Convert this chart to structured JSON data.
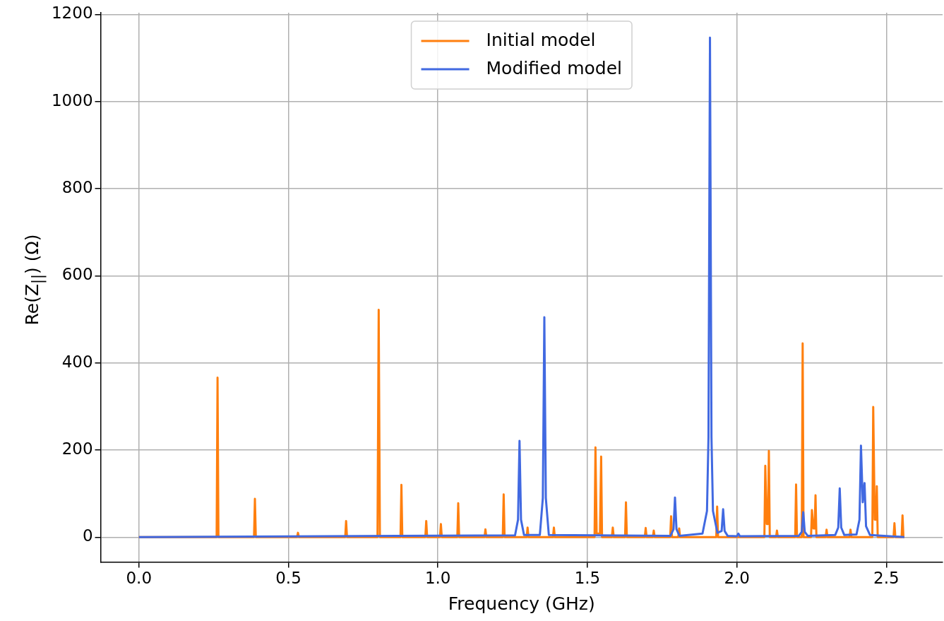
{
  "chart_data": {
    "type": "line",
    "xlabel": "Frequency (GHz)",
    "ylabel": "Re(Z$_{||}$) (Ω)",
    "xlim": [
      -0.128,
      2.688
    ],
    "ylim": [
      -57,
      1204
    ],
    "xticks": [
      {
        "value": 0,
        "label": "0.0"
      },
      {
        "value": 0.5,
        "label": "0.5"
      },
      {
        "value": 1,
        "label": "1.0"
      },
      {
        "value": 1.5,
        "label": "1.5"
      },
      {
        "value": 2,
        "label": "2.0"
      },
      {
        "value": 2.5,
        "label": "2.5"
      }
    ],
    "yticks": [
      0,
      200,
      400,
      600,
      800,
      1000,
      1200
    ],
    "grid": true,
    "legend": "top",
    "marker": "none",
    "line_style": "solid",
    "series": [
      {
        "name": "Initial model",
        "color": "#ff7f0e",
        "x": [
          0,
          0.26,
          0.263,
          0.266,
          0.385,
          0.388,
          0.391,
          0.529,
          0.532,
          0.535,
          0.69,
          0.693,
          0.696,
          0.798,
          0.802,
          0.806,
          0.875,
          0.878,
          0.881,
          0.958,
          0.961,
          0.964,
          1.007,
          1.01,
          1.013,
          1.065,
          1.068,
          1.071,
          1.156,
          1.159,
          1.162,
          1.217,
          1.22,
          1.223,
          1.297,
          1.3,
          1.303,
          1.385,
          1.388,
          1.391,
          1.524,
          1.527,
          1.531,
          1.542,
          1.546,
          1.549,
          1.582,
          1.585,
          1.588,
          1.626,
          1.629,
          1.632,
          1.692,
          1.695,
          1.698,
          1.719,
          1.722,
          1.725,
          1.777,
          1.78,
          1.783,
          1.804,
          1.807,
          1.81,
          1.931,
          1.934,
          1.937,
          2.092,
          2.095,
          2.1,
          2.104,
          2.107,
          2.11,
          2.131,
          2.134,
          2.137,
          2.195,
          2.198,
          2.201,
          2.217,
          2.22,
          2.223,
          2.248,
          2.251,
          2.256,
          2.26,
          2.263,
          2.266,
          2.297,
          2.3,
          2.303,
          2.377,
          2.38,
          2.383,
          2.453,
          2.456,
          2.461,
          2.465,
          2.468,
          2.471,
          2.524,
          2.527,
          2.53,
          2.551,
          2.554,
          2.557,
          2.56
        ],
        "values": [
          0,
          0,
          366,
          0,
          0,
          88,
          0,
          0,
          10,
          0,
          0,
          37,
          0,
          0,
          522,
          0,
          0,
          120,
          0,
          0,
          37,
          0,
          0,
          30,
          0,
          0,
          78,
          0,
          0,
          18,
          0,
          0,
          98,
          0,
          0,
          22,
          0,
          0,
          22,
          0,
          0,
          206,
          8,
          8,
          185,
          0,
          0,
          22,
          0,
          0,
          80,
          0,
          0,
          21,
          0,
          0,
          15,
          0,
          0,
          48,
          0,
          0,
          20,
          0,
          0,
          70,
          0,
          0,
          164,
          30,
          30,
          198,
          0,
          0,
          15,
          0,
          0,
          121,
          0,
          0,
          445,
          0,
          0,
          62,
          20,
          20,
          96,
          0,
          0,
          17,
          0,
          0,
          17,
          0,
          0,
          299,
          40,
          40,
          117,
          0,
          0,
          32,
          0,
          0,
          50,
          0,
          0
        ]
      },
      {
        "name": "Modified model",
        "color": "#4169e1",
        "x": [
          0,
          1.258,
          1.268,
          1.273,
          1.278,
          1.288,
          1.341,
          1.351,
          1.356,
          1.361,
          1.371,
          1.778,
          1.788,
          1.793,
          1.798,
          1.808,
          1.885,
          1.9,
          1.905,
          1.91,
          1.915,
          1.92,
          1.935,
          1.949,
          1.954,
          1.959,
          1.969,
          2,
          2.005,
          2.01,
          2.207,
          2.217,
          2.222,
          2.227,
          2.237,
          2.329,
          2.339,
          2.344,
          2.349,
          2.359,
          2.4,
          2.41,
          2.415,
          2.421,
          2.427,
          2.432,
          2.445,
          2.56
        ],
        "values": [
          0,
          4,
          40,
          221,
          40,
          5,
          5,
          90,
          505,
          90,
          5,
          3,
          18,
          91,
          18,
          3,
          8,
          60,
          230,
          1147,
          230,
          60,
          10,
          14,
          64,
          14,
          3,
          2,
          8,
          2,
          3,
          12,
          57,
          12,
          3,
          5,
          22,
          112,
          22,
          5,
          6,
          40,
          210,
          80,
          124,
          25,
          5,
          0
        ]
      }
    ]
  }
}
